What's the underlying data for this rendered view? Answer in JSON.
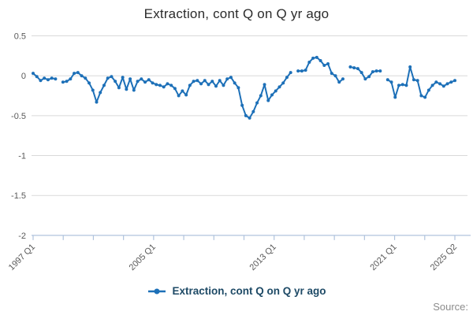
{
  "title": "Extraction, cont Q on Q yr ago",
  "legend": {
    "label": "Extraction, cont Q on Q yr ago"
  },
  "source_label": "Source:",
  "colors": {
    "line": "#1d70b8",
    "legend_text": "#1e4a66",
    "axis": "#b0c3dd",
    "grid": "#d9d9d9",
    "title": "#2b2b2b",
    "tick_label": "#595959",
    "source": "#8c8c8c"
  },
  "chart_data": {
    "type": "line",
    "title": "Extraction, cont Q on Q yr ago",
    "x_start": "1997 Q1",
    "x_end": "2025 Q2",
    "x_frequency": "quarterly",
    "x_tick_labels": [
      "1997 Q1",
      "2005 Q1",
      "2013 Q1",
      "2021 Q1",
      "2025 Q2"
    ],
    "y_ticks": [
      0.5,
      0,
      -0.5,
      -1,
      -1.5,
      -2
    ],
    "ylim": [
      -2,
      0.5
    ],
    "grid": "horizontal",
    "legend_position": "bottom",
    "marker": "circle",
    "series": [
      {
        "name": "Extraction, cont Q on Q yr ago",
        "quarterly_values": [
          0.03,
          -0.01,
          -0.06,
          -0.03,
          -0.05,
          -0.03,
          -0.04,
          null,
          -0.08,
          -0.07,
          -0.04,
          0.03,
          0.04,
          0,
          -0.03,
          -0.09,
          -0.18,
          -0.33,
          -0.21,
          -0.12,
          -0.03,
          -0.01,
          -0.07,
          -0.15,
          -0.02,
          -0.17,
          -0.04,
          -0.18,
          -0.07,
          -0.04,
          -0.08,
          -0.05,
          -0.09,
          -0.11,
          -0.12,
          -0.14,
          -0.1,
          -0.12,
          -0.16,
          -0.25,
          -0.19,
          -0.24,
          -0.12,
          -0.07,
          -0.06,
          -0.1,
          -0.06,
          -0.11,
          -0.07,
          -0.13,
          -0.06,
          -0.12,
          -0.04,
          -0.02,
          -0.09,
          -0.15,
          -0.37,
          -0.5,
          -0.53,
          -0.45,
          -0.34,
          -0.25,
          -0.11,
          -0.31,
          -0.24,
          -0.19,
          -0.14,
          -0.09,
          -0.02,
          0.04,
          null,
          0.06,
          0.06,
          0.07,
          0.17,
          0.22,
          0.23,
          0.19,
          0.13,
          0.15,
          0.03,
          0,
          -0.08,
          -0.04,
          null,
          0.11,
          0.1,
          0.09,
          0.04,
          -0.04,
          -0.01,
          0.05,
          0.06,
          0.06,
          null,
          -0.05,
          -0.08,
          -0.27,
          -0.12,
          -0.11,
          -0.12,
          0.11,
          -0.05,
          -0.06,
          -0.25,
          -0.27,
          -0.18,
          -0.12,
          -0.08,
          -0.1,
          -0.13,
          -0.1,
          -0.08,
          -0.06
        ]
      }
    ]
  }
}
